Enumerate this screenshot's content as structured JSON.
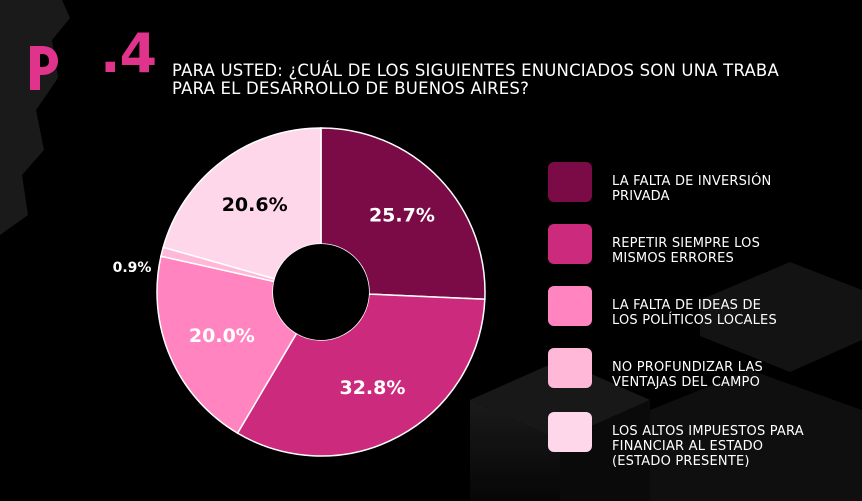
{
  "header": {
    "slide_number": ".4",
    "question": "PARA USTED: ¿CUÁL DE LOS SIGUIENTES ENUNCIADOS SON UNA TRABA\nPARA EL DESARROLLO DE BUENOS AIRES?"
  },
  "colors": {
    "accent": "#e0338c",
    "background": "#000000"
  },
  "chart_data": {
    "type": "pie",
    "donut": true,
    "categories": [
      "LA FALTA DE INVERSIÓN\nPRIVADA",
      "REPETIR SIEMPRE LOS\nMISMOS ERRORES",
      "LA FALTA DE IDEAS DE\nLOS POLÍTICOS LOCALES",
      "NO PROFUNDIZAR LAS\nVENTAJAS DEL CAMPO",
      "LOS ALTOS IMPUESTOS PARA\nFINANCIAR AL ESTADO\n(ESTADO PRESENTE)"
    ],
    "values": [
      25.7,
      32.8,
      20.0,
      0.9,
      20.6
    ],
    "labels": [
      "25.7%",
      "32.8%",
      "20.0%",
      "0.9%",
      "20.6%"
    ],
    "colors": [
      "#7a0b47",
      "#cc2a7d",
      "#ff84bf",
      "#ffb8d8",
      "#ffd7ea"
    ],
    "legend_position": "right"
  }
}
